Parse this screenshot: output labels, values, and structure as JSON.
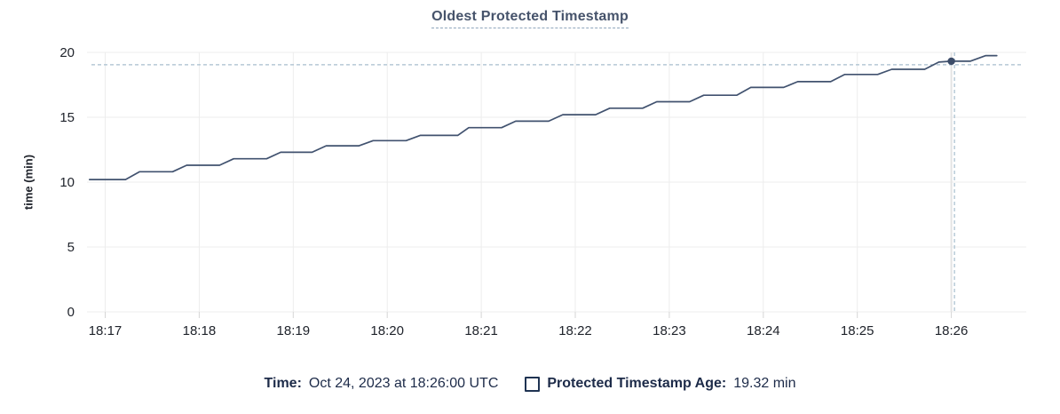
{
  "title": "Oldest Protected Timestamp",
  "colors": {
    "line": "#41526f",
    "dot": "#3c4c69",
    "grid": "#ededed",
    "tick": "#d6d6d6",
    "axis_text": "#20242c",
    "title_text": "#46536b",
    "legend_text": "#1d2b49",
    "crosshair": "#a7bece",
    "hover_band": "#e4e4e4"
  },
  "chart_data": {
    "type": "line",
    "title": "Oldest Protected Timestamp",
    "ylabel": "time (min)",
    "xlabel": "",
    "ylim": [
      0,
      20
    ],
    "yticks": [
      0,
      5,
      10,
      15,
      20
    ],
    "xticks": [
      "18:17",
      "18:18",
      "18:19",
      "18:20",
      "18:21",
      "18:22",
      "18:23",
      "18:24",
      "18:25",
      "18:26"
    ],
    "grid": true,
    "legend_position": "bottom",
    "series": [
      {
        "name": "Protected Timestamp Age",
        "unit": "min",
        "points": [
          [
            "18:16:50",
            10.2
          ],
          [
            "18:17:13",
            10.2
          ],
          [
            "18:17:22",
            10.8
          ],
          [
            "18:17:43",
            10.8
          ],
          [
            "18:17:52",
            11.3
          ],
          [
            "18:18:13",
            11.3
          ],
          [
            "18:18:22",
            11.8
          ],
          [
            "18:18:43",
            11.8
          ],
          [
            "18:18:52",
            12.3
          ],
          [
            "18:19:12",
            12.3
          ],
          [
            "18:19:21",
            12.8
          ],
          [
            "18:19:42",
            12.8
          ],
          [
            "18:19:51",
            13.2
          ],
          [
            "18:20:12",
            13.2
          ],
          [
            "18:20:21",
            13.6
          ],
          [
            "18:20:45",
            13.6
          ],
          [
            "18:20:52",
            14.2
          ],
          [
            "18:21:13",
            14.2
          ],
          [
            "18:21:22",
            14.7
          ],
          [
            "18:21:43",
            14.7
          ],
          [
            "18:21:52",
            15.2
          ],
          [
            "18:22:13",
            15.2
          ],
          [
            "18:22:22",
            15.7
          ],
          [
            "18:22:43",
            15.7
          ],
          [
            "18:22:52",
            16.2
          ],
          [
            "18:23:13",
            16.2
          ],
          [
            "18:23:22",
            16.7
          ],
          [
            "18:23:43",
            16.7
          ],
          [
            "18:23:52",
            17.3
          ],
          [
            "18:24:13",
            17.3
          ],
          [
            "18:24:22",
            17.75
          ],
          [
            "18:24:43",
            17.75
          ],
          [
            "18:24:52",
            18.3
          ],
          [
            "18:25:13",
            18.3
          ],
          [
            "18:25:22",
            18.7
          ],
          [
            "18:25:43",
            18.7
          ],
          [
            "18:25:52",
            19.25
          ],
          [
            "18:26:00",
            19.32
          ],
          [
            "18:26:12",
            19.32
          ],
          [
            "18:26:22",
            19.75
          ],
          [
            "18:26:29",
            19.75
          ]
        ]
      }
    ],
    "hover_point": {
      "time": "18:26:00",
      "value": 19.32
    },
    "cursor": {
      "time": "18:26:02",
      "value": 19.05
    }
  },
  "legend": {
    "time_label": "Time:",
    "time_value": "Oct 24, 2023 at 18:26:00 UTC",
    "series_label": "Protected Timestamp Age:",
    "series_value": "19.32 min"
  }
}
